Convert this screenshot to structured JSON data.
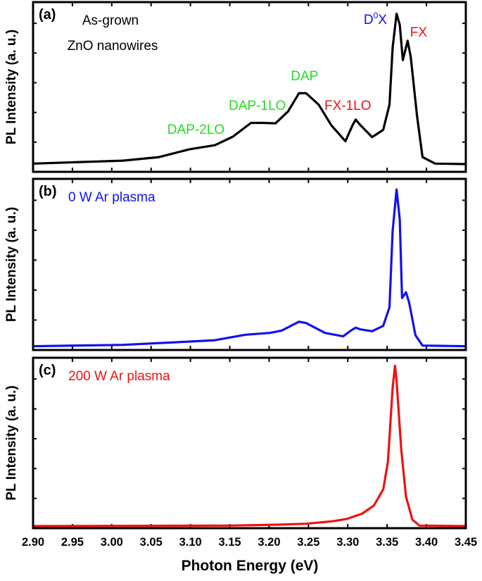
{
  "chart_data": {
    "type": "line",
    "xlabel": "Photon Energy (eV)",
    "xlim": [
      2.9,
      3.45
    ],
    "x_ticks": [
      "2.90",
      "2.95",
      "3.00",
      "3.05",
      "3.10",
      "3.15",
      "3.20",
      "3.25",
      "3.30",
      "3.35",
      "3.40",
      "3.45"
    ],
    "panels": [
      {
        "tag": "(a)",
        "ylabel": "PL Intensity (a. u.)",
        "ylim": [
          0,
          1
        ],
        "sample_text": [
          "As-grown",
          "ZnO nanowires"
        ],
        "sample_color": "#000000",
        "line_color": "#000000",
        "annotations": [
          {
            "text": "DAP-2LO",
            "color": "#22dd22",
            "x": 3.107
          },
          {
            "text": "DAP-1LO",
            "color": "#22dd22",
            "x": 3.185
          },
          {
            "text": "DAP",
            "color": "#22dd22",
            "x": 3.245
          },
          {
            "text": "FX-1LO",
            "color": "#ee1111",
            "x": 3.3
          },
          {
            "text": "D",
            "sup": "0",
            "tail": "X",
            "color": "#1111ee",
            "x": 3.335
          },
          {
            "text": "FX",
            "color": "#ee1111",
            "x": 3.39
          }
        ],
        "x": [
          2.901,
          3.014,
          3.06,
          3.099,
          3.131,
          3.154,
          3.177,
          3.193,
          3.208,
          3.224,
          3.238,
          3.247,
          3.263,
          3.279,
          3.297,
          3.306,
          3.31,
          3.316,
          3.331,
          3.345,
          3.353,
          3.357,
          3.362,
          3.366,
          3.37,
          3.376,
          3.38,
          3.388,
          3.395,
          3.411,
          3.45
        ],
        "y": [
          0.037,
          0.055,
          0.076,
          0.124,
          0.148,
          0.2,
          0.283,
          0.283,
          0.28,
          0.352,
          0.462,
          0.462,
          0.393,
          0.269,
          0.172,
          0.269,
          0.303,
          0.269,
          0.197,
          0.241,
          0.393,
          0.738,
          0.942,
          0.876,
          0.662,
          0.779,
          0.683,
          0.324,
          0.076,
          0.037,
          0.034
        ]
      },
      {
        "tag": "(b)",
        "ylabel": "PL Intensity (a. u.)",
        "ylim": [
          0,
          1
        ],
        "sample_text": [
          "0 W Ar plasma"
        ],
        "sample_color": "#1111ee",
        "line_color": "#1111ee",
        "annotations": [],
        "x": [
          2.901,
          3.014,
          3.099,
          3.131,
          3.17,
          3.201,
          3.216,
          3.238,
          3.247,
          3.271,
          3.294,
          3.304,
          3.31,
          3.316,
          3.331,
          3.345,
          3.353,
          3.357,
          3.362,
          3.366,
          3.369,
          3.374,
          3.378,
          3.386,
          3.395,
          3.45
        ],
        "y": [
          0.01,
          0.018,
          0.038,
          0.046,
          0.079,
          0.09,
          0.104,
          0.157,
          0.149,
          0.09,
          0.069,
          0.104,
          0.121,
          0.111,
          0.1,
          0.132,
          0.243,
          0.701,
          0.949,
          0.771,
          0.299,
          0.333,
          0.271,
          0.076,
          0.014,
          0.01
        ]
      },
      {
        "tag": "(c)",
        "ylabel": "PL Intensity (a. u.)",
        "ylim": [
          0,
          1
        ],
        "sample_text": [
          "200 W Ar plasma"
        ],
        "sample_color": "#ee1111",
        "line_color": "#ee1111",
        "annotations": [],
        "x": [
          2.901,
          3.15,
          3.208,
          3.247,
          3.279,
          3.298,
          3.318,
          3.333,
          3.345,
          3.351,
          3.357,
          3.36,
          3.362,
          3.368,
          3.374,
          3.382,
          3.391,
          3.45
        ],
        "y": [
          0,
          0.003,
          0.008,
          0.014,
          0.028,
          0.042,
          0.074,
          0.123,
          0.22,
          0.387,
          0.833,
          0.965,
          0.875,
          0.457,
          0.178,
          0.039,
          0.003,
          0
        ]
      }
    ]
  }
}
